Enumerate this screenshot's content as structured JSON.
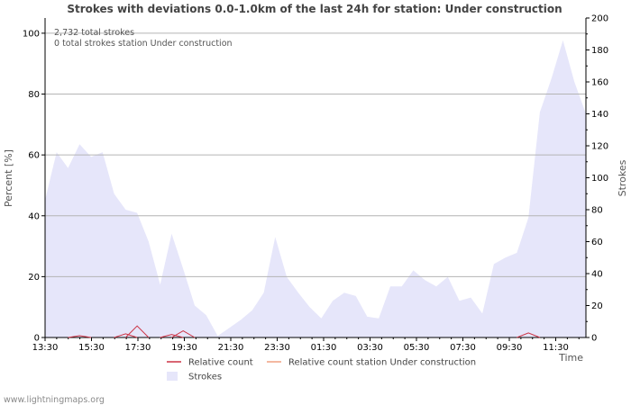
{
  "chart_data": {
    "type": "area",
    "title": "Strokes with deviations 0.0-1.0km of the last 24h for station: Under construction",
    "ylabel_left": "Percent   [%]",
    "ylabel_right": "Strokes",
    "xlabel": "Time",
    "y_left_range": [
      0,
      105
    ],
    "y_left_ticks": [
      0,
      20,
      40,
      60,
      80,
      100
    ],
    "y_right_range": [
      0,
      200
    ],
    "y_right_ticks": [
      0,
      20,
      40,
      60,
      80,
      100,
      120,
      140,
      160,
      180,
      200
    ],
    "x_tick_labels": [
      "13:30",
      "15:30",
      "17:30",
      "19:30",
      "21:30",
      "23:30",
      "01:30",
      "03:30",
      "05:30",
      "07:30",
      "09:30",
      "11:30"
    ],
    "annotations": [
      "2,732 total strokes",
      "0 total strokes station Under construction"
    ],
    "series": [
      {
        "name": "Strokes",
        "axis": "right",
        "color": "#e6e6fa",
        "values": [
          86,
          116,
          106,
          121,
          113,
          116,
          90,
          80,
          78,
          60,
          33,
          65,
          43,
          20,
          14,
          1,
          6,
          11,
          17,
          28,
          63,
          38,
          28,
          19,
          12,
          23,
          28,
          26,
          13,
          12,
          32,
          32,
          42,
          36,
          32,
          38,
          23,
          25,
          15,
          46,
          50,
          53,
          75,
          141,
          162,
          186,
          160,
          140
        ]
      },
      {
        "name": "Relative count",
        "axis": "left",
        "color": "#cc3344",
        "values": [
          0,
          0,
          0,
          0.6,
          0,
          0,
          0,
          1.2,
          3.8,
          0,
          0,
          1.0,
          2.2,
          0,
          0,
          0,
          0,
          0,
          0,
          0,
          0,
          0,
          0,
          0,
          0,
          0,
          0,
          0,
          0,
          0,
          0,
          0,
          0,
          0,
          0,
          0,
          0,
          0,
          0,
          0,
          0,
          0,
          1.5,
          0,
          0,
          0,
          0,
          0
        ]
      },
      {
        "name": "Relative count station Under construction",
        "axis": "left",
        "color": "#f0a080",
        "values": []
      }
    ],
    "legend": [
      {
        "label": "Relative count",
        "kind": "line",
        "color": "#cc3344"
      },
      {
        "label": "Relative count station Under construction",
        "kind": "line",
        "color": "#f0a080"
      },
      {
        "label": "Strokes",
        "kind": "area",
        "color": "#e6e6fa"
      }
    ],
    "grid": true
  },
  "footer": "www.lightningmaps.org"
}
